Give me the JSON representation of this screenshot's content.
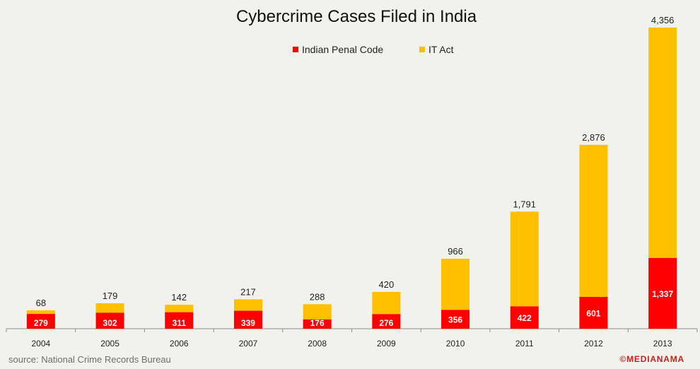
{
  "chart_data": {
    "type": "bar",
    "title": "Cybercrime Cases Filed in India",
    "categories": [
      "2004",
      "2005",
      "2006",
      "2007",
      "2008",
      "2009",
      "2010",
      "2011",
      "2012",
      "2013"
    ],
    "series": [
      {
        "name": "Indian Penal Code",
        "color": "#ff0000",
        "values": [
          279,
          302,
          311,
          339,
          176,
          276,
          356,
          422,
          601,
          1337
        ],
        "labels": [
          "279",
          "302",
          "311",
          "339",
          "176",
          "276",
          "356",
          "422",
          "601",
          "1,337"
        ]
      },
      {
        "name": "IT Act",
        "color": "#ffc000",
        "values": [
          68,
          179,
          142,
          217,
          288,
          420,
          966,
          1791,
          2876,
          4356
        ],
        "labels": [
          "68",
          "179",
          "142",
          "217",
          "288",
          "420",
          "966",
          "1,791",
          "2,876",
          "4,356"
        ]
      }
    ],
    "source": "source: National Crime Records Bureau",
    "brand": "©MEDIANAMA",
    "legend_position": "top",
    "stacked": true
  }
}
